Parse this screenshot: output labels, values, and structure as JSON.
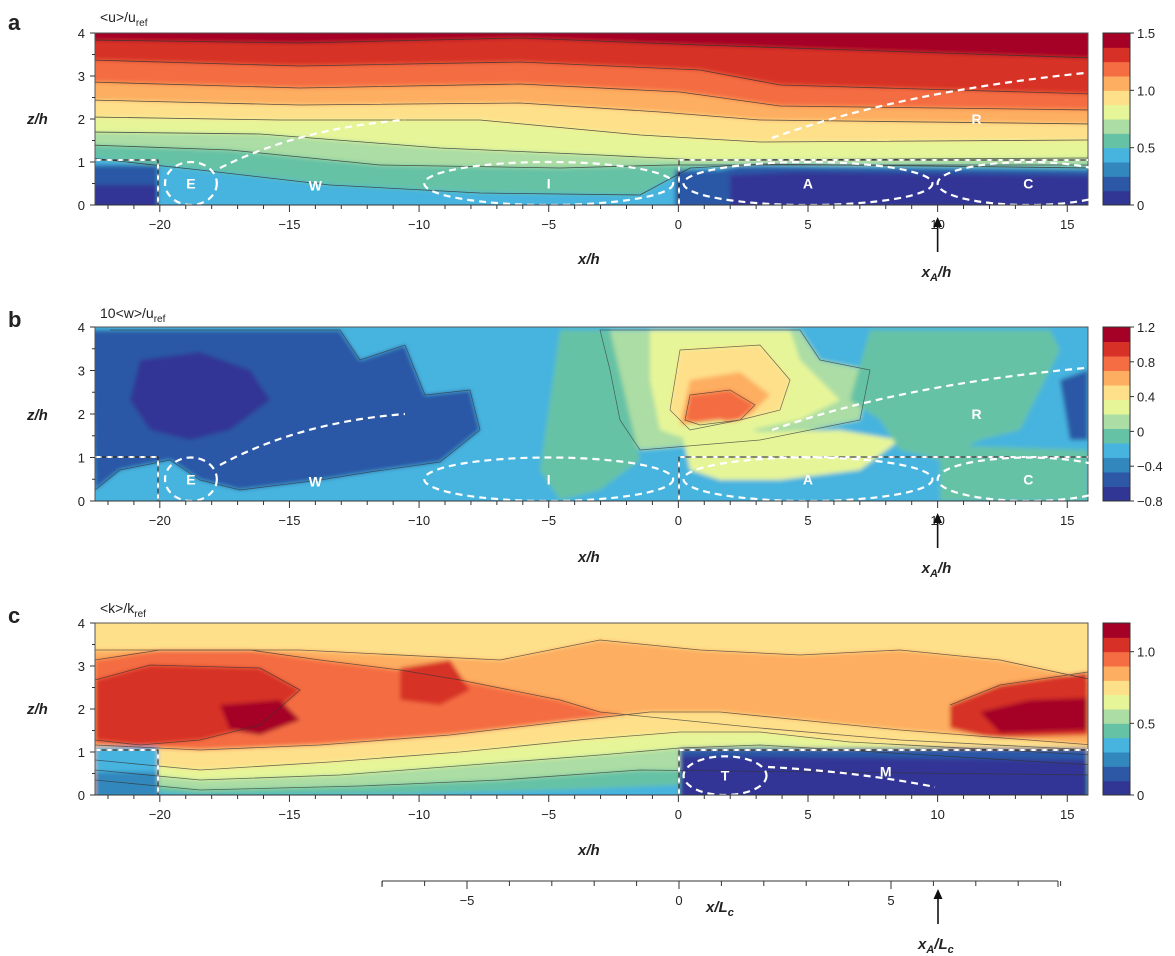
{
  "colormap": [
    "#313695",
    "#2c58a6",
    "#3288bd",
    "#46b4df",
    "#66c2a5",
    "#abdda4",
    "#e6f598",
    "#fee08b",
    "#fdae61",
    "#f46d43",
    "#d73027",
    "#a50026"
  ],
  "chart_data": [
    {
      "type": "heatmap",
      "panel": "a",
      "title_main": "<u>/u",
      "title_sub": "ref",
      "xlabel": "x/h",
      "ylabel": "z/h",
      "xlim": [
        -22.5,
        15.8
      ],
      "ylim": [
        0,
        4
      ],
      "xticks": [
        -20,
        -15,
        -10,
        -5,
        0,
        5,
        10,
        15
      ],
      "xtick_labels": [
        "−20",
        "−15",
        "−10",
        "−5",
        "0",
        "5",
        "10",
        "15"
      ],
      "yticks": [
        0,
        1,
        2,
        3,
        4
      ],
      "colorbar": {
        "min": 0,
        "max": 1.5,
        "ticks": [
          0,
          0.5,
          1.0,
          1.5
        ],
        "tick_labels": [
          "0",
          "0.5",
          "1.0",
          "1.5"
        ]
      },
      "regions": [
        {
          "label": "E",
          "cx": -18.8,
          "cz": 0.5,
          "rx": 1.0,
          "rz": 0.5
        },
        {
          "label": "W",
          "cx": -14,
          "cz": 0.45
        },
        {
          "label": "I",
          "cx": -5,
          "cz": 0.5,
          "rx": 4.8,
          "rz": 0.5
        },
        {
          "label": "A",
          "cx": 5,
          "cz": 0.5,
          "rx": 4.8,
          "rz": 0.5
        },
        {
          "label": "C",
          "cx": 13.5,
          "cz": 0.5,
          "rx": 3.5,
          "rz": 0.5
        },
        {
          "label": "R",
          "cx": 11.5,
          "cz": 2.0
        }
      ],
      "marker": {
        "x": 10,
        "label": "x",
        "sub": "A",
        "suffix": "/h"
      }
    },
    {
      "type": "heatmap",
      "panel": "b",
      "title_main": "10<w>/u",
      "title_sub": "ref",
      "xlabel": "x/h",
      "ylabel": "z/h",
      "xlim": [
        -22.5,
        15.8
      ],
      "ylim": [
        0,
        4
      ],
      "xticks": [
        -20,
        -15,
        -10,
        -5,
        0,
        5,
        10,
        15
      ],
      "xtick_labels": [
        "−20",
        "−15",
        "−10",
        "−5",
        "0",
        "5",
        "10",
        "15"
      ],
      "yticks": [
        0,
        1,
        2,
        3,
        4
      ],
      "colorbar": {
        "min": -0.8,
        "max": 1.2,
        "ticks": [
          -0.8,
          -0.4,
          0,
          0.4,
          0.8,
          1.2
        ],
        "tick_labels": [
          "−0.8",
          "−0.4",
          "0",
          "0.4",
          "0.8",
          "1.2"
        ]
      },
      "regions": [
        {
          "label": "E",
          "cx": -18.8,
          "cz": 0.5,
          "rx": 1.0,
          "rz": 0.5
        },
        {
          "label": "W",
          "cx": -14,
          "cz": 0.45
        },
        {
          "label": "I",
          "cx": -5,
          "cz": 0.5,
          "rx": 4.8,
          "rz": 0.5
        },
        {
          "label": "A",
          "cx": 5,
          "cz": 0.5,
          "rx": 4.8,
          "rz": 0.5
        },
        {
          "label": "C",
          "cx": 13.5,
          "cz": 0.5,
          "rx": 3.5,
          "rz": 0.5
        },
        {
          "label": "R",
          "cx": 11.5,
          "cz": 2.0
        }
      ],
      "marker": {
        "x": 10,
        "label": "x",
        "sub": "A",
        "suffix": "/h"
      }
    },
    {
      "type": "heatmap",
      "panel": "c",
      "title_main": "<k>/k",
      "title_sub": "ref",
      "xlabel": "x/h",
      "ylabel": "z/h",
      "xlim": [
        -22.5,
        15.8
      ],
      "ylim": [
        0,
        4
      ],
      "xticks": [
        -20,
        -15,
        -10,
        -5,
        0,
        5,
        10,
        15
      ],
      "xtick_labels": [
        "−20",
        "−15",
        "−10",
        "−5",
        "0",
        "5",
        "10",
        "15"
      ],
      "yticks": [
        0,
        1,
        2,
        3,
        4
      ],
      "colorbar": {
        "min": 0,
        "max": 1.2,
        "ticks": [
          0,
          0.5,
          1.0
        ],
        "tick_labels": [
          "0",
          "0.5",
          "1.0"
        ]
      },
      "regions": [
        {
          "label": "T",
          "cx": 1.8,
          "cz": 0.45,
          "rx": 1.6,
          "rz": 0.45
        },
        {
          "label": "M",
          "cx": 8,
          "cz": 0.55
        }
      ]
    }
  ],
  "bottom_axis": {
    "label_main": "x/L",
    "label_sub": "c",
    "ticks": [
      -5,
      0,
      5
    ],
    "tick_labels": [
      "−5",
      "0",
      "5"
    ],
    "marker": {
      "x": 6.1,
      "label": "x",
      "sub": "A",
      "suffix": "/L",
      "suffix_sub": "c"
    }
  }
}
